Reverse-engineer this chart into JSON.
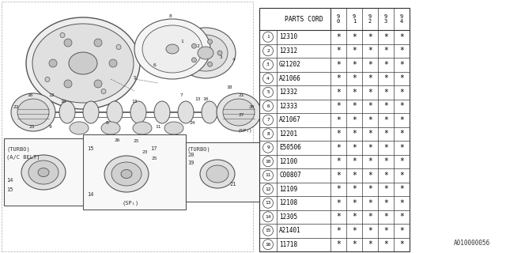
{
  "bg_color": "#ffffff",
  "col_header": "PARTS CORD",
  "year_cols": [
    "9\n0",
    "9\n1",
    "9\n2",
    "9\n3",
    "9\n4"
  ],
  "rows": [
    {
      "num": "1",
      "code": "12310"
    },
    {
      "num": "2",
      "code": "12312"
    },
    {
      "num": "3",
      "code": "G21202"
    },
    {
      "num": "4",
      "code": "A21066"
    },
    {
      "num": "5",
      "code": "12332"
    },
    {
      "num": "6",
      "code": "12333"
    },
    {
      "num": "7",
      "code": "A21067"
    },
    {
      "num": "8",
      "code": "12201"
    },
    {
      "num": "9",
      "code": "E50506"
    },
    {
      "num": "10",
      "code": "12100"
    },
    {
      "num": "11",
      "code": "C00807"
    },
    {
      "num": "12",
      "code": "12109"
    },
    {
      "num": "13",
      "code": "12108"
    },
    {
      "num": "14",
      "code": "12305"
    },
    {
      "num": "15",
      "code": "A21401"
    },
    {
      "num": "16",
      "code": "11718"
    }
  ],
  "footer_code": "A010000056",
  "line_color": "#555555",
  "text_color": "#000000",
  "font_size_table": 5.5,
  "font_size_header": 5.8,
  "font_size_footer": 5.5
}
